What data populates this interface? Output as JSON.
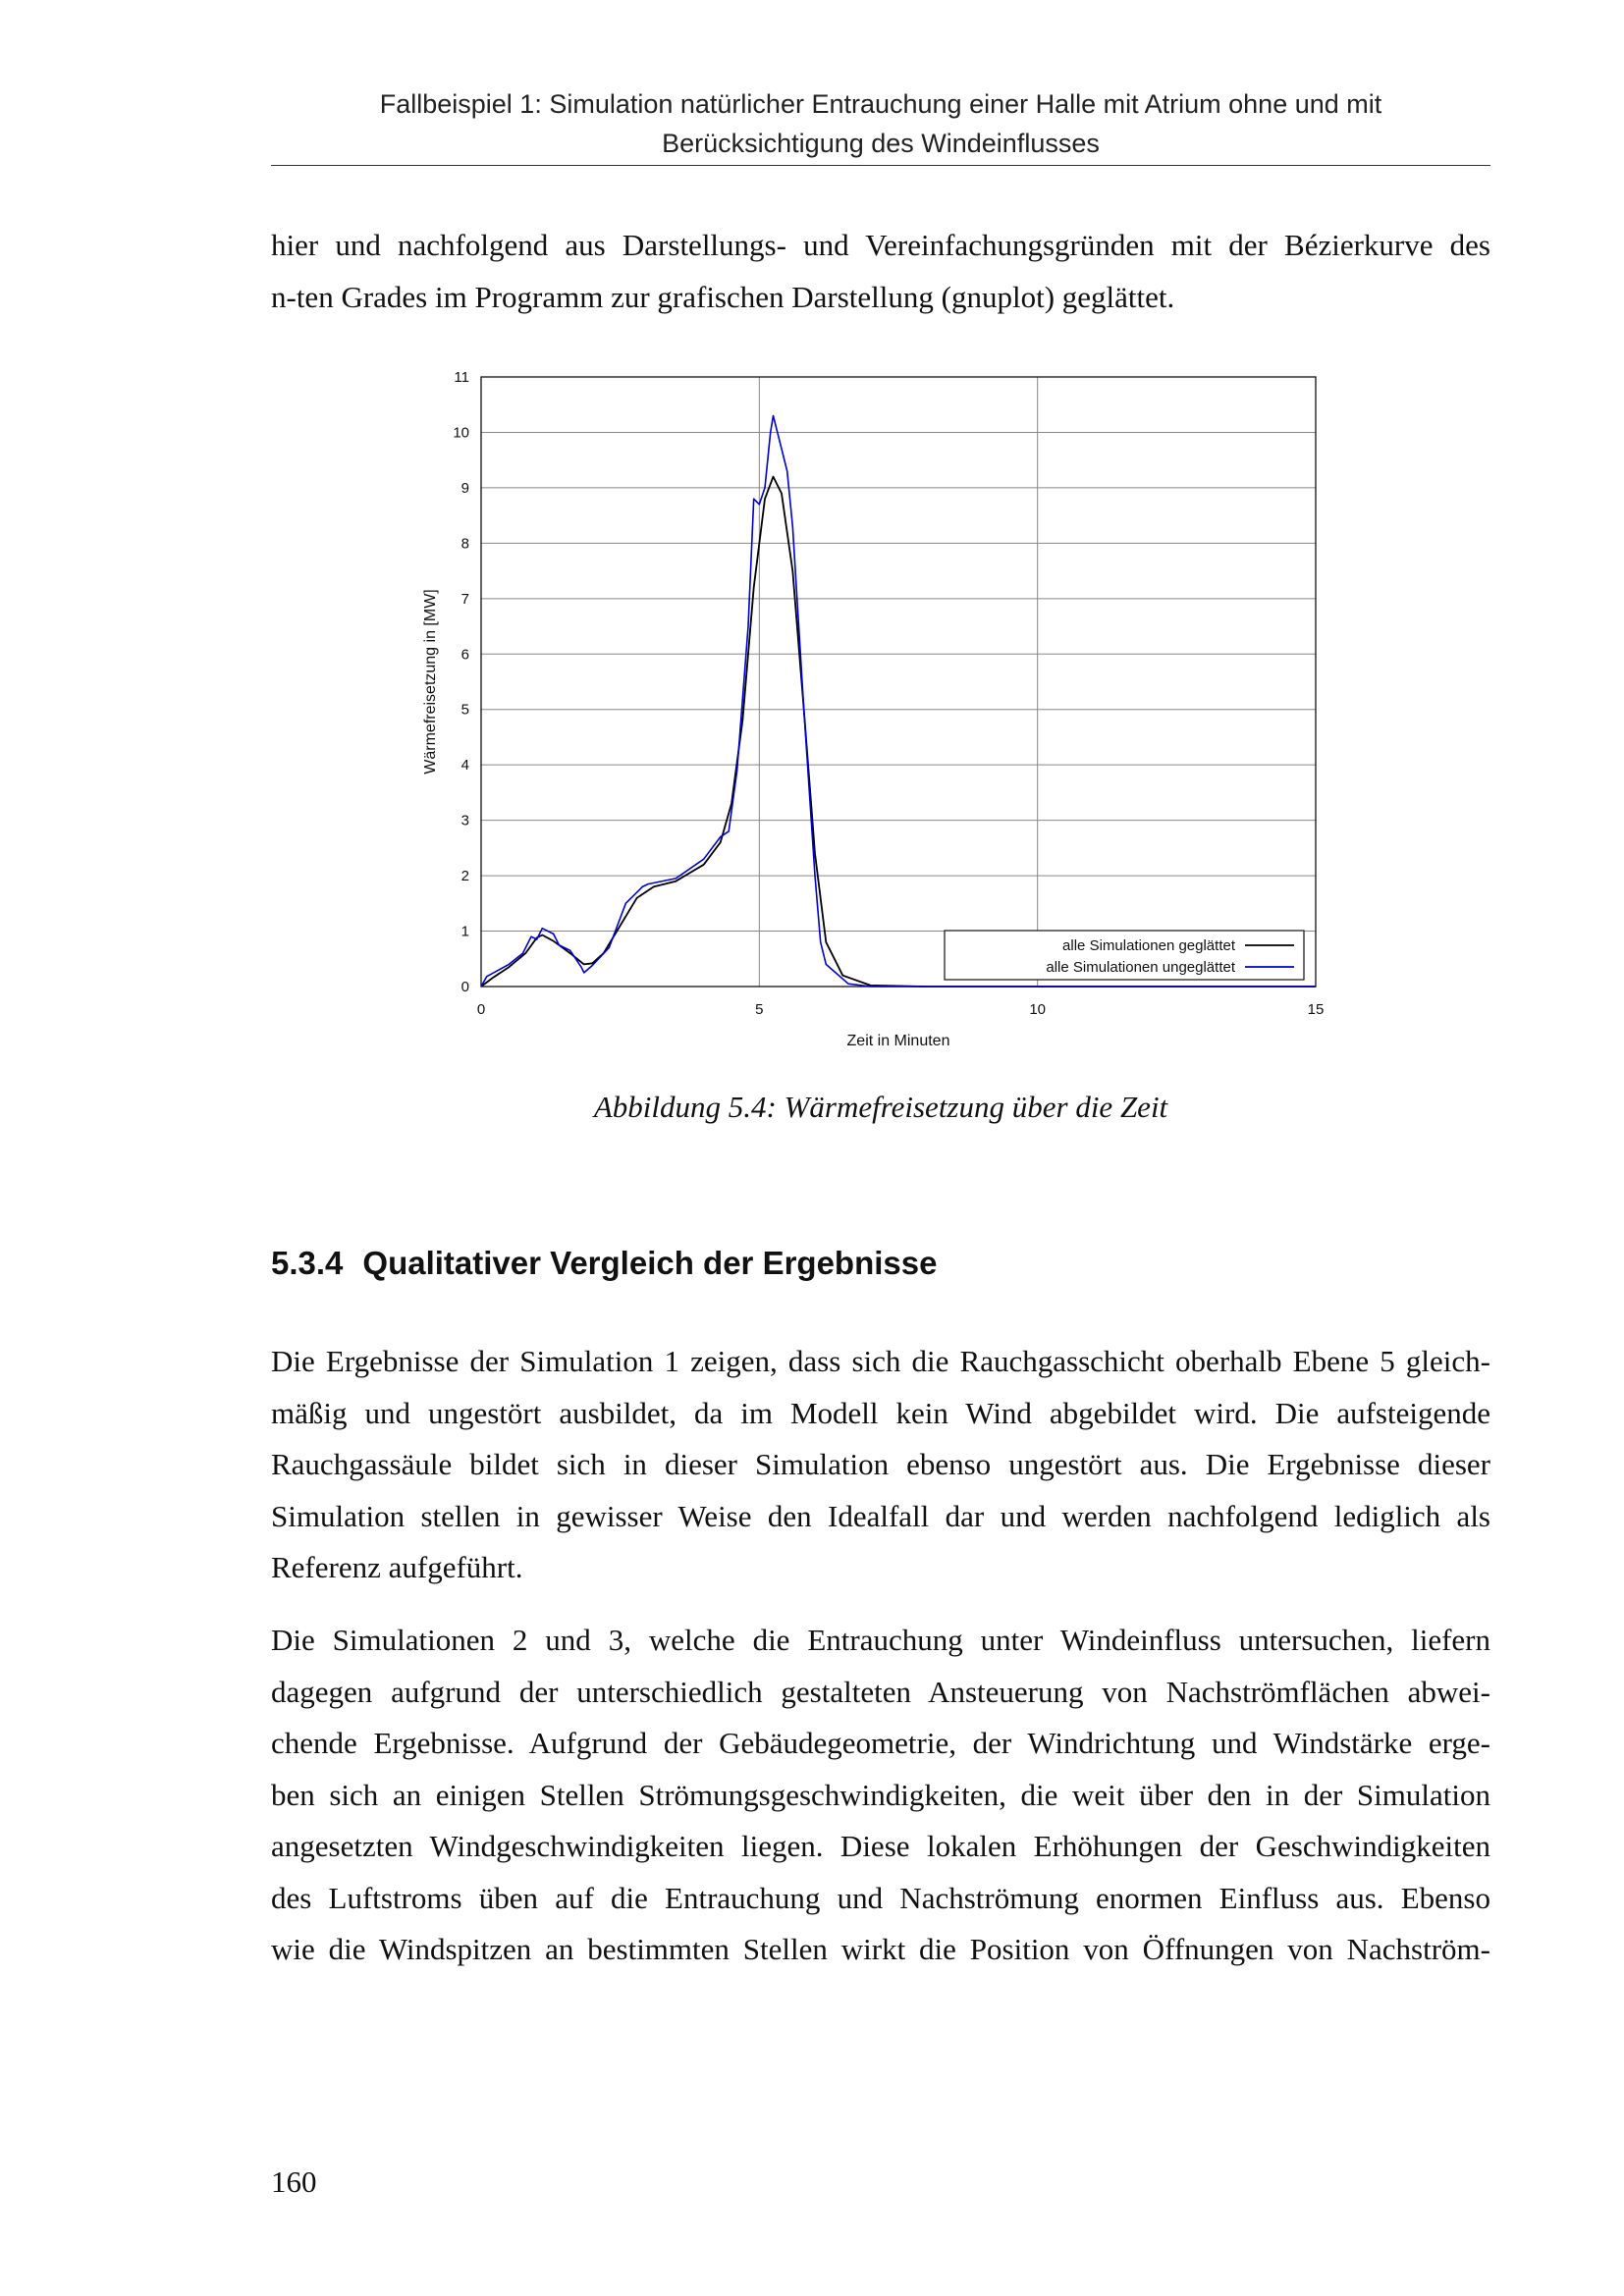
{
  "header": {
    "lines": [
      "Fallbeispiel 1: Simulation natürlicher Entrauchung einer Halle mit Atrium ohne und mit",
      "Berücksichtigung des Windeinflusses"
    ]
  },
  "intro": {
    "lines": [
      "hier und nachfolgend aus Darstellungs- und Vereinfachungsgründen mit der Bézierkurve des",
      "n-ten Grades im Programm zur grafischen Darstellung (gnuplot) geglättet."
    ]
  },
  "figure": {
    "caption": "Abbildung 5.4: Wärmefreisetzung über die Zeit"
  },
  "chart_data": {
    "type": "line",
    "title": "",
    "xlabel": "Zeit in Minuten",
    "ylabel": "Wärmefreisetzung in [MW]",
    "xlim": [
      0,
      15
    ],
    "ylim": [
      0,
      11
    ],
    "xticks": [
      "0",
      "5",
      "10",
      "15"
    ],
    "yticks": [
      "0",
      "1",
      "2",
      "3",
      "4",
      "5",
      "6",
      "7",
      "8",
      "9",
      "10",
      "11"
    ],
    "grid": true,
    "legend_position": "bottom-right",
    "series": [
      {
        "name": "alle Simulationen geglättet",
        "color": "#000000",
        "x": [
          0,
          0.2,
          0.5,
          0.8,
          1.0,
          1.1,
          1.3,
          1.6,
          1.85,
          2.0,
          2.2,
          2.5,
          2.8,
          3.1,
          3.5,
          4.0,
          4.3,
          4.5,
          4.7,
          4.9,
          5.1,
          5.25,
          5.4,
          5.6,
          5.8,
          6.0,
          6.2,
          6.5,
          7.0,
          8.0,
          15
        ],
        "y": [
          0,
          0.15,
          0.35,
          0.6,
          0.88,
          0.93,
          0.82,
          0.6,
          0.4,
          0.42,
          0.6,
          1.1,
          1.6,
          1.8,
          1.9,
          2.2,
          2.6,
          3.3,
          4.8,
          7.2,
          8.8,
          9.2,
          8.9,
          7.5,
          5.0,
          2.4,
          0.8,
          0.2,
          0.02,
          0,
          0
        ]
      },
      {
        "name": "alle Simulationen ungeglättet",
        "color": "#0000cc",
        "x": [
          0,
          0.1,
          0.5,
          0.75,
          0.9,
          1.0,
          1.1,
          1.3,
          1.4,
          1.6,
          1.8,
          1.85,
          2.0,
          2.3,
          2.6,
          2.9,
          3.0,
          3.5,
          4.0,
          4.3,
          4.45,
          4.6,
          4.8,
          4.9,
          5.0,
          5.1,
          5.2,
          5.25,
          5.35,
          5.5,
          5.6,
          5.8,
          6.0,
          6.1,
          6.2,
          6.6,
          7.0,
          15
        ],
        "y": [
          0,
          0.18,
          0.4,
          0.6,
          0.9,
          0.85,
          1.05,
          0.95,
          0.75,
          0.65,
          0.35,
          0.25,
          0.38,
          0.7,
          1.5,
          1.8,
          1.85,
          1.95,
          2.3,
          2.7,
          2.8,
          3.9,
          6.5,
          8.8,
          8.7,
          9.0,
          10.0,
          10.3,
          9.9,
          9.3,
          8.3,
          5.0,
          2.0,
          0.8,
          0.4,
          0.05,
          0,
          0
        ]
      }
    ]
  },
  "section": {
    "number": "5.3.4",
    "title": "Qualitativer Vergleich der Ergebnisse"
  },
  "paragraphs": [
    {
      "lines": [
        "Die Ergebnisse der Simulation 1 zeigen, dass sich die Rauchgasschicht oberhalb Ebene 5 gleich-",
        "mäßig und ungestört ausbildet, da im Modell kein Wind abgebildet wird. Die aufsteigende",
        "Rauchgassäule bildet sich in dieser Simulation ebenso ungestört aus. Die Ergebnisse dieser",
        "Simulation stellen in gewisser Weise den Idealfall dar und werden nachfolgend lediglich als",
        "Referenz aufgeführt."
      ]
    },
    {
      "lines": [
        "Die Simulationen 2 und 3, welche die Entrauchung unter Windeinfluss untersuchen, liefern",
        "dagegen aufgrund der unterschiedlich gestalteten Ansteuerung von Nachströmflächen abwei-",
        "chende Ergebnisse. Aufgrund der Gebäudegeometrie, der Windrichtung und Windstärke erge-",
        "ben sich an einigen Stellen Strömungsgeschwindigkeiten, die weit über den in der Simulation",
        "angesetzten Windgeschwindigkeiten liegen. Diese lokalen Erhöhungen der Geschwindigkeiten",
        "des Luftstroms üben auf die Entrauchung und Nachströmung enormen Einfluss aus. Ebenso",
        "wie die Windspitzen an bestimmten Stellen wirkt die Position von Öffnungen von Nachström-"
      ]
    }
  ],
  "footer": {
    "page_number": "160"
  }
}
